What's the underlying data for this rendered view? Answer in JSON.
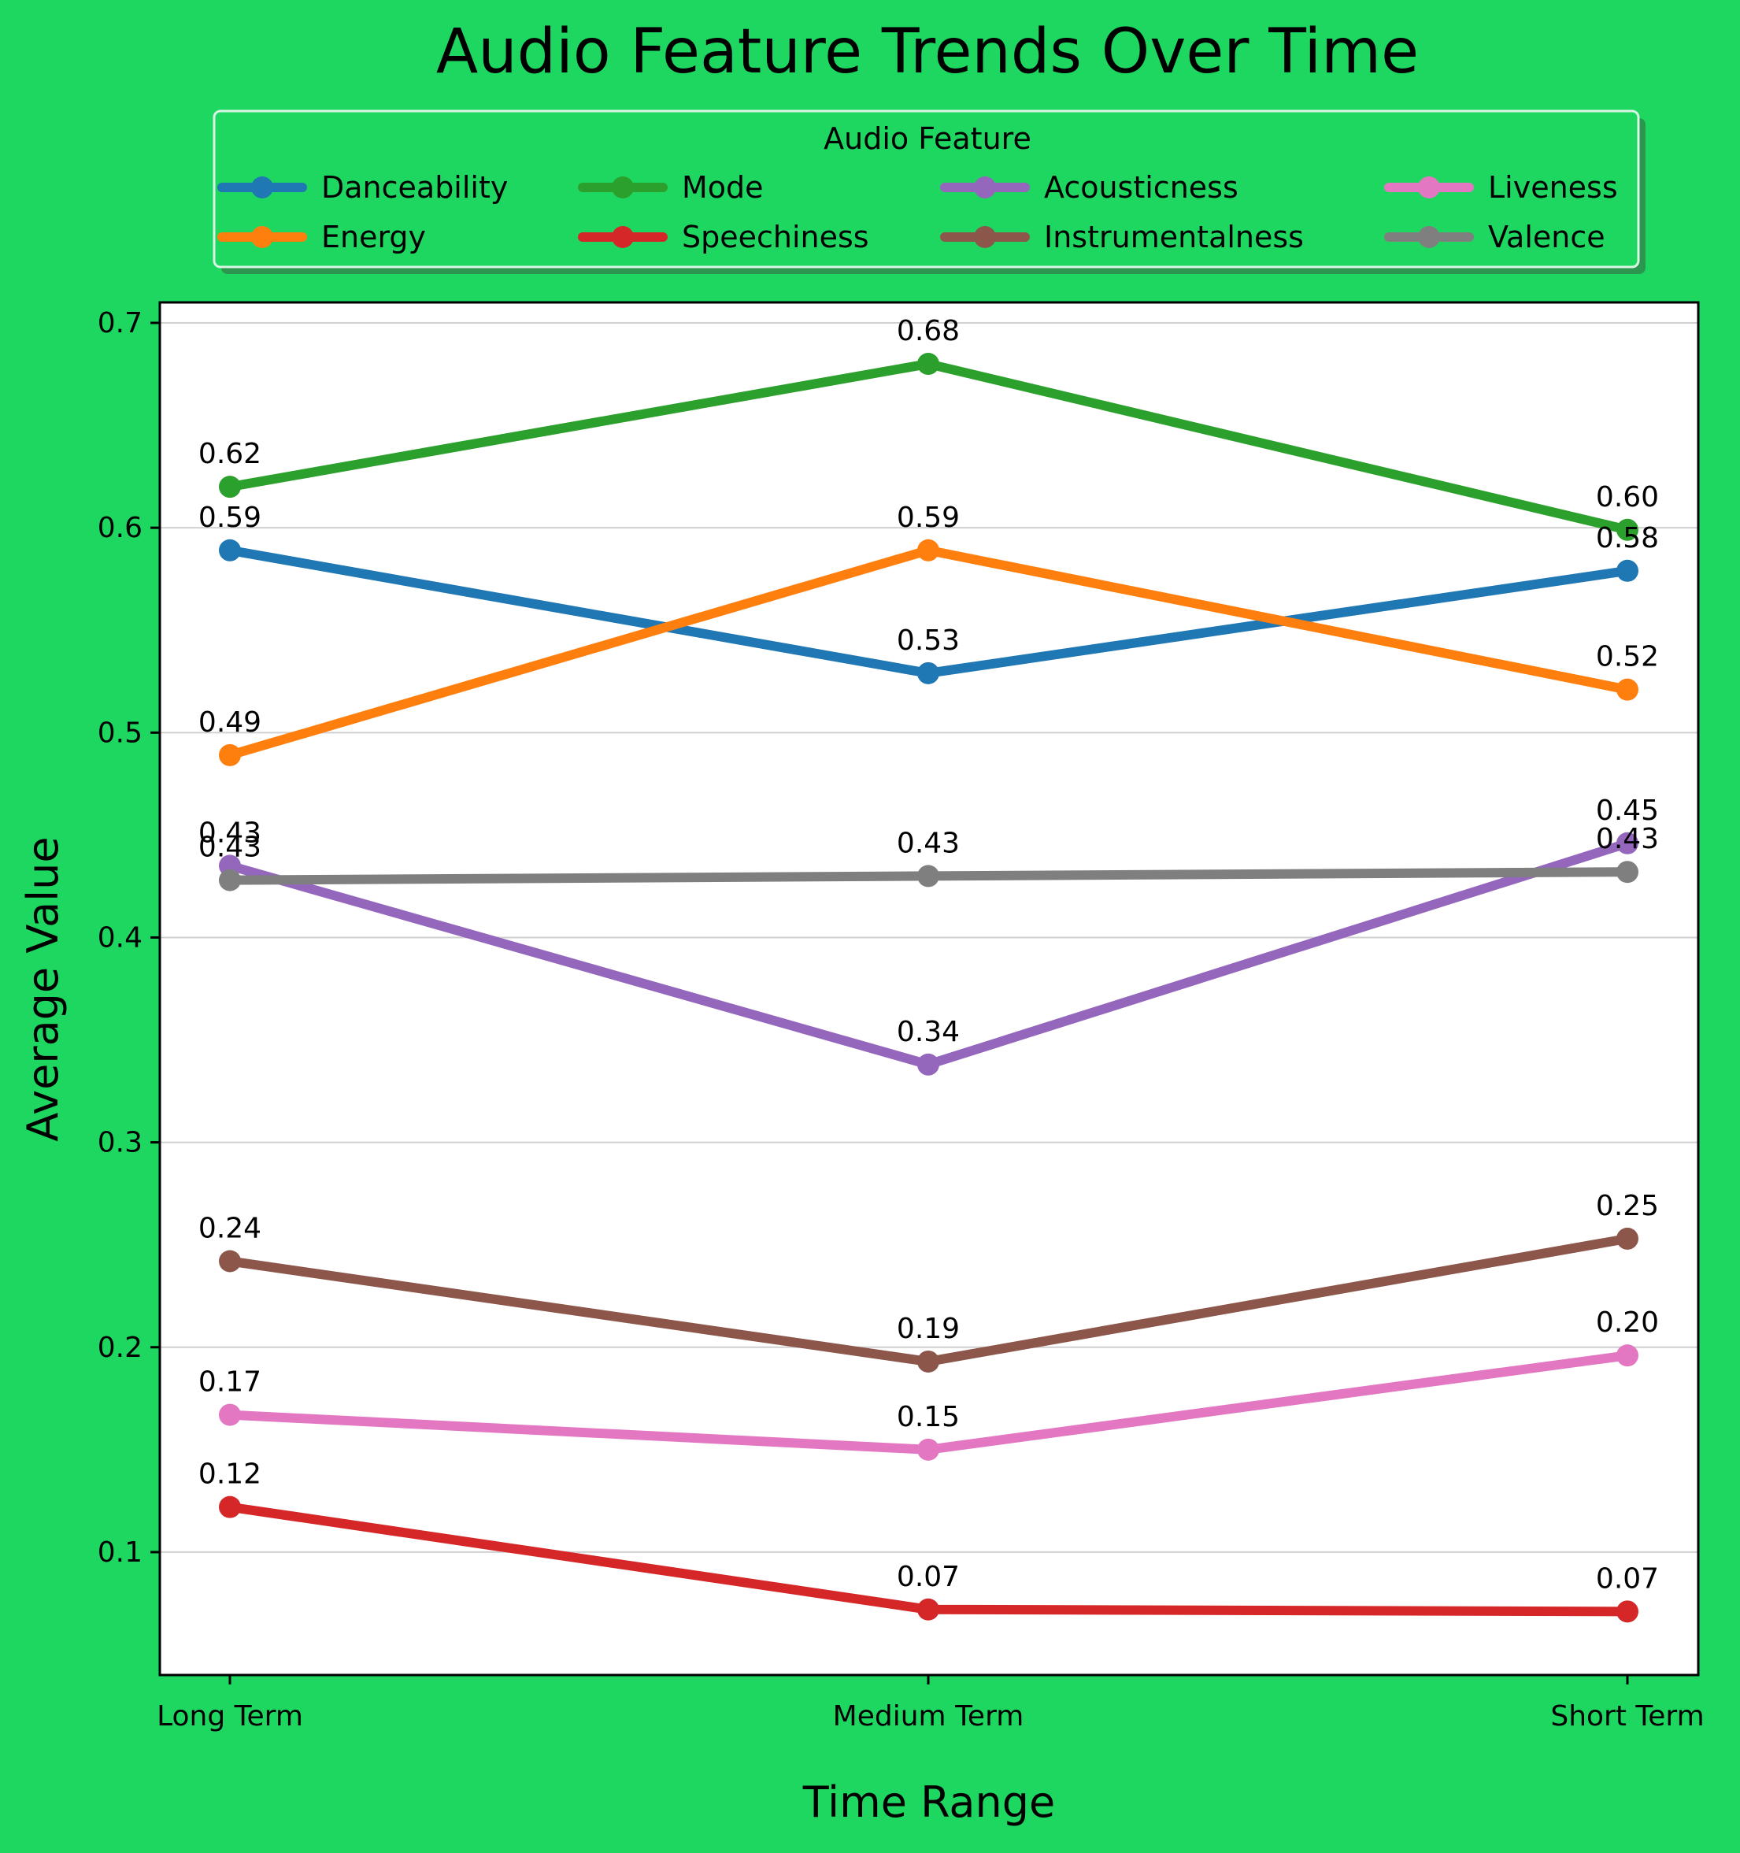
{
  "chart_data": {
    "type": "line",
    "title": "Audio Feature Trends Over Time",
    "xlabel": "Time Range",
    "ylabel": "Average Value",
    "categories": [
      "Long Term",
      "Medium Term",
      "Short Term"
    ],
    "ylim": [
      0.04,
      0.71
    ],
    "yticks": [
      0.1,
      0.2,
      0.3,
      0.4,
      0.5,
      0.6,
      0.7
    ],
    "ytick_labels": [
      "0.1",
      "0.2",
      "0.3",
      "0.4",
      "0.5",
      "0.6",
      "0.7"
    ],
    "grid": "horizontal",
    "legend": {
      "title": "Audio Feature",
      "placement": "top-center",
      "columns": 4
    },
    "series": [
      {
        "name": "Danceability",
        "color": "#1f77b4",
        "values": [
          0.589,
          0.529,
          0.579
        ],
        "labels": [
          "0.59",
          "0.53",
          "0.58"
        ]
      },
      {
        "name": "Energy",
        "color": "#ff7f0e",
        "values": [
          0.489,
          0.589,
          0.521
        ],
        "labels": [
          "0.49",
          "0.59",
          "0.52"
        ]
      },
      {
        "name": "Mode",
        "color": "#2ca02c",
        "values": [
          0.62,
          0.68,
          0.599
        ],
        "labels": [
          "0.62",
          "0.68",
          "0.60"
        ]
      },
      {
        "name": "Speechiness",
        "color": "#d62728",
        "values": [
          0.122,
          0.072,
          0.071
        ],
        "labels": [
          "0.12",
          "0.07",
          "0.07"
        ]
      },
      {
        "name": "Acousticness",
        "color": "#9467bd",
        "values": [
          0.435,
          0.338,
          0.446
        ],
        "labels": [
          "0.43",
          "0.34",
          "0.45"
        ]
      },
      {
        "name": "Instrumentalness",
        "color": "#8c564b",
        "values": [
          0.242,
          0.193,
          0.253
        ],
        "labels": [
          "0.24",
          "0.19",
          "0.25"
        ]
      },
      {
        "name": "Liveness",
        "color": "#e377c2",
        "values": [
          0.167,
          0.15,
          0.196
        ],
        "labels": [
          "0.17",
          "0.15",
          "0.20"
        ]
      },
      {
        "name": "Valence",
        "color": "#7f7f7f",
        "values": [
          0.428,
          0.43,
          0.432
        ],
        "labels": [
          "0.43",
          "0.43",
          "0.43"
        ]
      }
    ]
  }
}
